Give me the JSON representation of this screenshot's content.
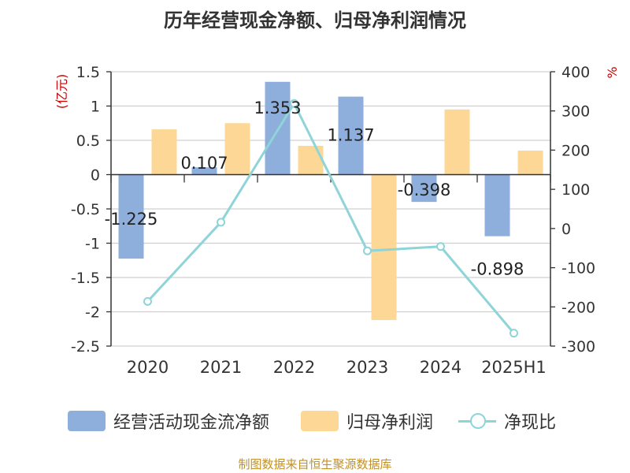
{
  "chart_data": {
    "type": "bar",
    "title": "历年经营现金净额、归母净利润情况",
    "categories": [
      "2020",
      "2021",
      "2022",
      "2023",
      "2024",
      "2025H1"
    ],
    "left_axis": {
      "label": "(亿元)",
      "ylim": [
        -2.5,
        1.5
      ],
      "ticks": [
        "1.5",
        "1",
        "0.5",
        "0",
        "-0.5",
        "-1",
        "-1.5",
        "-2",
        "-2.5"
      ]
    },
    "right_axis": {
      "label": "%",
      "ylim": [
        -300,
        400
      ],
      "ticks": [
        "400",
        "300",
        "200",
        "100",
        "0",
        "-100",
        "-200",
        "-300"
      ]
    },
    "series": [
      {
        "name": "经营活动现金流净额",
        "kind": "bar",
        "axis": "left",
        "color": "#8eaedc",
        "values": [
          -1.225,
          0.107,
          1.353,
          1.137,
          -0.398,
          -0.898
        ],
        "labels": [
          "-1.225",
          "0.107",
          "1.353",
          "1.137",
          "-0.398",
          "-0.898"
        ]
      },
      {
        "name": "归母净利润",
        "kind": "bar",
        "axis": "left",
        "color": "#fdd796",
        "values": [
          0.66,
          0.75,
          0.42,
          -2.12,
          0.95,
          0.35
        ]
      },
      {
        "name": "净现比",
        "kind": "line",
        "axis": "right",
        "color": "#8ed4d8",
        "values": [
          -186,
          16,
          319,
          -57,
          -46,
          -267
        ]
      }
    ],
    "grid": true,
    "legend_position": "bottom"
  },
  "source": "制图数据来自恒生聚源数据库"
}
